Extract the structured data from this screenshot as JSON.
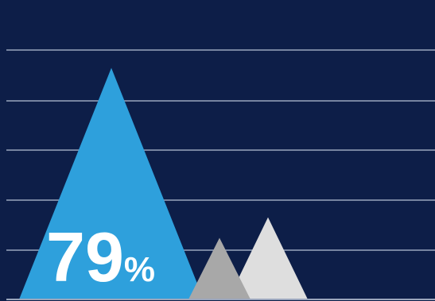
{
  "chart_data": {
    "type": "bar",
    "shape": "triangle",
    "grid": true,
    "ylim": [
      0,
      100
    ],
    "series": [
      {
        "values": [
          79,
          21,
          28
        ]
      }
    ],
    "colors": [
      "#2ea0dc",
      "#a8a8a8",
      "#dedede"
    ],
    "data_labels": [
      {
        "number": "79",
        "unit": "%"
      }
    ]
  }
}
